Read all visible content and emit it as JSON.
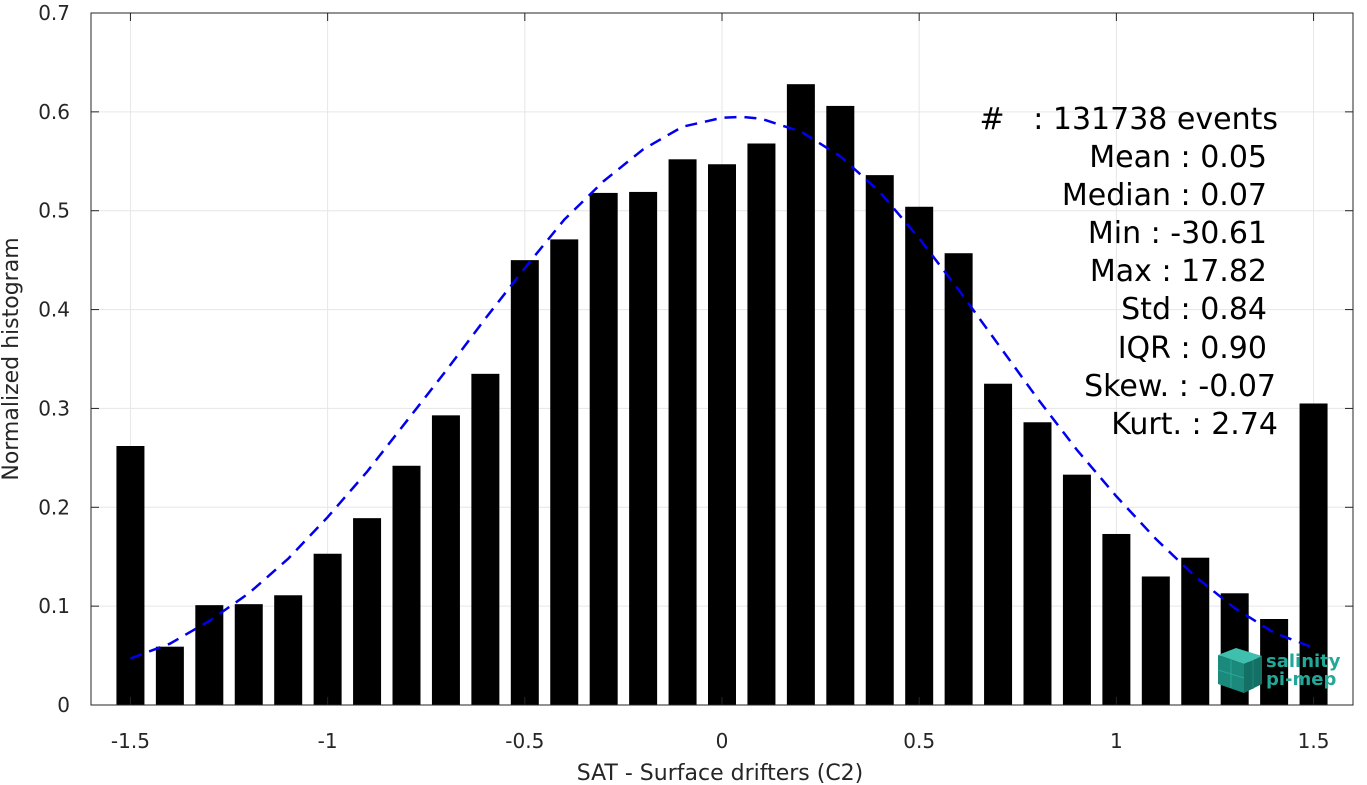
{
  "chart_data": {
    "type": "bar",
    "xlabel": "SAT - Surface drifters (C2)",
    "ylabel": "Normalized histogram",
    "xlim": [
      -1.6,
      1.6
    ],
    "ylim": [
      0,
      0.7
    ],
    "grid": true,
    "x": [
      -1.5,
      -1.4,
      -1.3,
      -1.2,
      -1.1,
      -1.0,
      -0.9,
      -0.8,
      -0.7,
      -0.6,
      -0.5,
      -0.4,
      -0.3,
      -0.2,
      -0.1,
      0.0,
      0.1,
      0.2,
      0.3,
      0.4,
      0.5,
      0.6,
      0.7,
      0.8,
      0.9,
      1.0,
      1.1,
      1.2,
      1.3,
      1.4,
      1.5
    ],
    "values": [
      0.262,
      0.059,
      0.101,
      0.102,
      0.111,
      0.153,
      0.189,
      0.242,
      0.293,
      0.335,
      0.45,
      0.471,
      0.518,
      0.519,
      0.552,
      0.547,
      0.568,
      0.628,
      0.606,
      0.536,
      0.504,
      0.457,
      0.325,
      0.286,
      0.233,
      0.173,
      0.13,
      0.149,
      0.113,
      0.087,
      0.305
    ],
    "bar_color": "#000000",
    "fit_curve": {
      "style": "dashed",
      "color": "#0000ee",
      "x": [
        -1.5,
        -1.4,
        -1.3,
        -1.2,
        -1.1,
        -1.0,
        -0.9,
        -0.8,
        -0.7,
        -0.6,
        -0.5,
        -0.4,
        -0.3,
        -0.2,
        -0.1,
        0.0,
        0.05,
        0.1,
        0.2,
        0.3,
        0.4,
        0.5,
        0.6,
        0.7,
        0.8,
        0.9,
        1.0,
        1.1,
        1.2,
        1.3,
        1.4,
        1.5
      ],
      "y": [
        0.047,
        0.062,
        0.085,
        0.113,
        0.148,
        0.19,
        0.236,
        0.287,
        0.338,
        0.391,
        0.442,
        0.491,
        0.53,
        0.562,
        0.585,
        0.594,
        0.595,
        0.593,
        0.58,
        0.555,
        0.519,
        0.472,
        0.42,
        0.365,
        0.31,
        0.258,
        0.211,
        0.168,
        0.13,
        0.098,
        0.073,
        0.058
      ]
    },
    "xticks": [
      -1.5,
      -1,
      -0.5,
      0,
      0.5,
      1,
      1.5
    ],
    "xtick_labels": [
      "-1.5",
      "-1",
      "-0.5",
      "0",
      "0.5",
      "1",
      "1.5"
    ],
    "yticks": [
      0,
      0.1,
      0.2,
      0.3,
      0.4,
      0.5,
      0.6,
      0.7
    ],
    "ytick_labels": [
      "0",
      "0.1",
      "0.2",
      "0.3",
      "0.4",
      "0.5",
      "0.6",
      "0.7"
    ]
  },
  "stats": [
    "#   : 131738 events",
    "Mean : 0.05",
    "Median : 0.07",
    "Min : -30.61",
    "Max : 17.82",
    "Std : 0.84",
    "IQR : 0.90",
    "Skew. : -0.07",
    "Kurt. : 2.74"
  ],
  "logo": {
    "line1": "salinity",
    "line2": "pi-mep",
    "color": "#22a898"
  }
}
